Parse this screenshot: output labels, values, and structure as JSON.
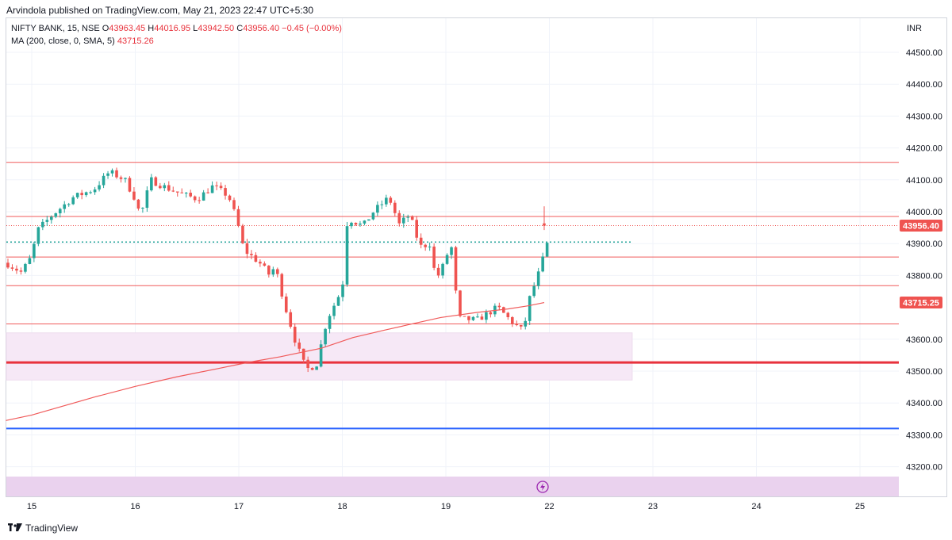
{
  "publisher_line": "Arvindola published on TradingView.com, May 21, 2023 22:47 UTC+5:30",
  "legend": {
    "symbol": "NIFTY BANK, 15, NSE",
    "open_label": "O",
    "open": "43963.45",
    "high_label": "H",
    "high": "44016.95",
    "low_label": "L",
    "low": "43942.50",
    "close_label": "C",
    "close": "43956.40",
    "change": "−0.45 (−0.00%)",
    "ma_label": "MA (200, close, 0, SMA, 5)",
    "ma_value": "43715.26"
  },
  "currency": "INR",
  "footer_brand": "TradingView",
  "colors": {
    "up": "#26a69a",
    "down": "#ef5350",
    "ma": "#f05a5a",
    "level": "#f05a5a",
    "support": "#e8323c",
    "blue_line": "#2962ff",
    "zone": "#f6e8f6",
    "bottom_band": "#ead2ee"
  },
  "chart_data": {
    "type": "candlestick",
    "y_range": [
      43100,
      44600
    ],
    "y_ticks": [
      "44500.00",
      "44400.00",
      "44300.00",
      "44200.00",
      "44100.00",
      "44000.00",
      "43900.00",
      "43800.00",
      "43600.00",
      "43500.00",
      "43400.00",
      "43300.00",
      "43200.00"
    ],
    "x_range": [
      14.75,
      25.4
    ],
    "x_ticks": [
      "15",
      "16",
      "17",
      "18",
      "19",
      "22",
      "23",
      "24",
      "25"
    ],
    "price_labels": [
      {
        "value": 43956.4,
        "text": "43956.40"
      },
      {
        "value": 43715.25,
        "text": "43715.25"
      }
    ],
    "horizontal_levels": [
      44155,
      43985,
      43858,
      43768,
      43648
    ],
    "support_line": 43527,
    "blue_line": 43320,
    "dotted_level": {
      "value": 43905,
      "x_end": 22.8
    },
    "demand_zone": {
      "from": 43472,
      "to": 43620,
      "x_end": 22.8
    },
    "last_price_line": 43956.4,
    "ma_series": [
      [
        14.75,
        43345
      ],
      [
        15.0,
        43362
      ],
      [
        15.3,
        43390
      ],
      [
        15.6,
        43418
      ],
      [
        16.0,
        43452
      ],
      [
        16.4,
        43482
      ],
      [
        16.8,
        43508
      ],
      [
        17.1,
        43528
      ],
      [
        17.4,
        43545
      ],
      [
        17.8,
        43572
      ],
      [
        18.1,
        43605
      ],
      [
        18.4,
        43628
      ],
      [
        18.7,
        43650
      ],
      [
        18.95,
        43668
      ],
      [
        19.3,
        43684
      ],
      [
        19.6,
        43695
      ],
      [
        19.8,
        43705
      ],
      [
        21.95,
        43715
      ]
    ],
    "candle_keyframes": [
      [
        14.75,
        43840
      ],
      [
        14.9,
        43810
      ],
      [
        15.0,
        43860
      ],
      [
        15.05,
        43940
      ],
      [
        15.2,
        43990
      ],
      [
        15.4,
        44045
      ],
      [
        15.6,
        44070
      ],
      [
        15.75,
        44125
      ],
      [
        15.9,
        44100
      ],
      [
        16.0,
        44040
      ],
      [
        16.05,
        43985
      ],
      [
        16.15,
        44100
      ],
      [
        16.3,
        44075
      ],
      [
        16.45,
        44055
      ],
      [
        16.6,
        44040
      ],
      [
        16.75,
        44080
      ],
      [
        16.9,
        44050
      ],
      [
        16.98,
        43975
      ],
      [
        17.05,
        43880
      ],
      [
        17.2,
        43840
      ],
      [
        17.3,
        43800
      ],
      [
        17.35,
        43830
      ],
      [
        17.45,
        43700
      ],
      [
        17.55,
        43590
      ],
      [
        17.65,
        43505
      ],
      [
        17.75,
        43520
      ],
      [
        17.85,
        43660
      ],
      [
        18.0,
        43760
      ],
      [
        18.05,
        43980
      ],
      [
        18.2,
        43955
      ],
      [
        18.3,
        44000
      ],
      [
        18.45,
        44045
      ],
      [
        18.55,
        43960
      ],
      [
        18.65,
        43990
      ],
      [
        18.75,
        43890
      ],
      [
        18.85,
        43900
      ],
      [
        18.9,
        43790
      ],
      [
        18.95,
        43810
      ],
      [
        19.05,
        43900
      ],
      [
        19.12,
        43665
      ],
      [
        19.3,
        43660
      ],
      [
        19.5,
        43700
      ],
      [
        19.65,
        43650
      ],
      [
        19.75,
        43625
      ],
      [
        19.8,
        43720
      ],
      [
        19.9,
        43810
      ],
      [
        19.98,
        43900
      ],
      [
        21.9,
        43960
      ]
    ]
  }
}
